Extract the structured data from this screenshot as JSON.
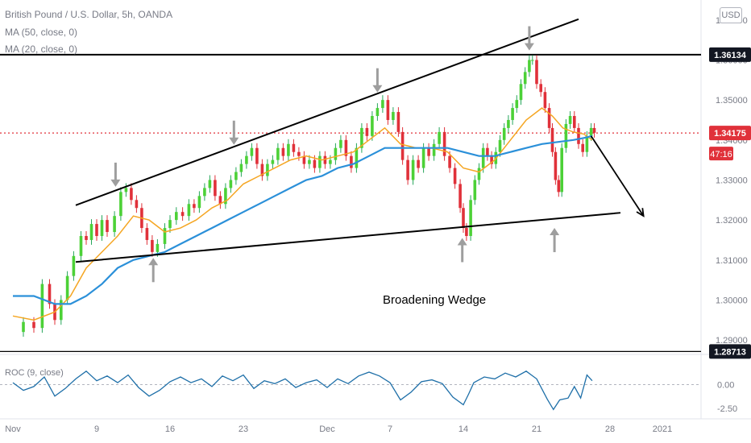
{
  "legend": {
    "symbol": "British Pound / U.S. Dollar, 5h, OANDA",
    "ma50": "MA (50, close, 0)",
    "ma20": "MA (20, close, 0)",
    "roc": "ROC (9, close)"
  },
  "currency": "USD",
  "colors": {
    "up": "#26a65b",
    "up_bright": "#4cd137",
    "down": "#e0313a",
    "ma50": "#2b90d9",
    "ma20": "#f5a623",
    "roc": "#1e6fa8",
    "price_line": "#e0313a",
    "annotation": "#000000",
    "marker_arrow": "#9e9e9e"
  },
  "chart_data": {
    "type": "line",
    "title": "British Pound / U.S. Dollar, 5h, OANDA",
    "price_axis": {
      "min": 1.287,
      "max": 1.375,
      "ticks": [
        "1.37000",
        "1.36000",
        "1.35000",
        "1.34000",
        "1.33000",
        "1.32000",
        "1.31000",
        "1.30000",
        "1.29000"
      ],
      "highlight_labels": [
        {
          "value": 1.36134,
          "text": "1.36134",
          "style": "black"
        },
        {
          "value": 1.34175,
          "text": "1.34175",
          "style": "red"
        },
        {
          "value": 1.28713,
          "text": "1.28713",
          "style": "black"
        }
      ],
      "countdown": "47:16"
    },
    "time_axis": {
      "start_day": 1,
      "end_day": 32,
      "labels": [
        {
          "day": 1,
          "text": "Nov"
        },
        {
          "day": 9,
          "text": "9"
        },
        {
          "day": 16,
          "text": "16"
        },
        {
          "day": 23,
          "text": "23"
        },
        {
          "day": 31,
          "text": "Dec"
        },
        {
          "day": 37,
          "text": "7"
        },
        {
          "day": 44,
          "text": "14"
        },
        {
          "day": 51,
          "text": "21"
        },
        {
          "day": 58,
          "text": "28"
        },
        {
          "day": 63,
          "text": "2021"
        }
      ]
    },
    "price_series": {
      "name": "GBPUSD close",
      "points": [
        [
          0.0,
          1.292
        ],
        [
          1.0,
          1.2945
        ],
        [
          2.0,
          1.293
        ],
        [
          2.8,
          1.304
        ],
        [
          3.5,
          1.299
        ],
        [
          4.0,
          1.295
        ],
        [
          4.6,
          1.3
        ],
        [
          5.2,
          1.306
        ],
        [
          5.8,
          1.311
        ],
        [
          6.5,
          1.316
        ],
        [
          7.0,
          1.315
        ],
        [
          7.5,
          1.319
        ],
        [
          8.0,
          1.316
        ],
        [
          8.5,
          1.32
        ],
        [
          9.0,
          1.317
        ],
        [
          9.7,
          1.321
        ],
        [
          10.3,
          1.327
        ],
        [
          10.8,
          1.328
        ],
        [
          11.3,
          1.325
        ],
        [
          11.8,
          1.323
        ],
        [
          12.3,
          1.318
        ],
        [
          12.8,
          1.315
        ],
        [
          13.3,
          1.312
        ],
        [
          13.8,
          1.314
        ],
        [
          14.5,
          1.318
        ],
        [
          15.0,
          1.32
        ],
        [
          15.6,
          1.322
        ],
        [
          16.2,
          1.321
        ],
        [
          16.8,
          1.324
        ],
        [
          17.3,
          1.323
        ],
        [
          17.8,
          1.326
        ],
        [
          18.3,
          1.328
        ],
        [
          18.8,
          1.33
        ],
        [
          19.3,
          1.326
        ],
        [
          19.8,
          1.324
        ],
        [
          20.3,
          1.328
        ],
        [
          20.8,
          1.33
        ],
        [
          21.3,
          1.332
        ],
        [
          21.8,
          1.334
        ],
        [
          22.3,
          1.336
        ],
        [
          22.8,
          1.338
        ],
        [
          23.3,
          1.334
        ],
        [
          23.8,
          1.331
        ],
        [
          24.3,
          1.334
        ],
        [
          24.8,
          1.335
        ],
        [
          25.3,
          1.338
        ],
        [
          25.8,
          1.336
        ],
        [
          26.3,
          1.339
        ],
        [
          26.8,
          1.337
        ],
        [
          27.3,
          1.336
        ],
        [
          27.8,
          1.334
        ],
        [
          28.3,
          1.335
        ],
        [
          28.8,
          1.333
        ],
        [
          29.3,
          1.336
        ],
        [
          29.8,
          1.334
        ],
        [
          30.3,
          1.335
        ],
        [
          30.8,
          1.338
        ],
        [
          31.3,
          1.34
        ],
        [
          31.8,
          1.336
        ],
        [
          32.3,
          1.333
        ],
        [
          32.8,
          1.338
        ],
        [
          33.3,
          1.343
        ],
        [
          33.8,
          1.341
        ],
        [
          34.3,
          1.346
        ],
        [
          34.8,
          1.348
        ],
        [
          35.3,
          1.35
        ],
        [
          35.8,
          1.345
        ],
        [
          36.3,
          1.347
        ],
        [
          36.8,
          1.342
        ],
        [
          37.2,
          1.335
        ],
        [
          37.7,
          1.33
        ],
        [
          38.2,
          1.335
        ],
        [
          38.7,
          1.333
        ],
        [
          39.2,
          1.338
        ],
        [
          39.7,
          1.336
        ],
        [
          40.2,
          1.339
        ],
        [
          40.7,
          1.342
        ],
        [
          41.2,
          1.336
        ],
        [
          41.7,
          1.333
        ],
        [
          42.2,
          1.329
        ],
        [
          42.7,
          1.323
        ],
        [
          43.0,
          1.318
        ],
        [
          43.3,
          1.316
        ],
        [
          43.7,
          1.325
        ],
        [
          44.1,
          1.33
        ],
        [
          44.5,
          1.333
        ],
        [
          44.9,
          1.338
        ],
        [
          45.3,
          1.336
        ],
        [
          45.7,
          1.334
        ],
        [
          46.1,
          1.337
        ],
        [
          46.5,
          1.34
        ],
        [
          46.9,
          1.343
        ],
        [
          47.3,
          1.345
        ],
        [
          47.7,
          1.348
        ],
        [
          48.1,
          1.35
        ],
        [
          48.5,
          1.354
        ],
        [
          48.9,
          1.357
        ],
        [
          49.3,
          1.36
        ],
        [
          49.6,
          1.36
        ],
        [
          50.0,
          1.354
        ],
        [
          50.4,
          1.352
        ],
        [
          50.8,
          1.348
        ],
        [
          51.2,
          1.343
        ],
        [
          51.5,
          1.337
        ],
        [
          51.8,
          1.33
        ],
        [
          52.1,
          1.327
        ],
        [
          52.4,
          1.338
        ],
        [
          52.8,
          1.344
        ],
        [
          53.2,
          1.346
        ],
        [
          53.6,
          1.343
        ],
        [
          54.0,
          1.339
        ],
        [
          54.4,
          1.337
        ],
        [
          54.8,
          1.341
        ],
        [
          55.2,
          1.343
        ],
        [
          55.5,
          1.3418
        ]
      ]
    },
    "ma20_series": {
      "name": "MA (20, close, 0)",
      "points": [
        [
          0.0,
          1.296
        ],
        [
          2.0,
          1.295
        ],
        [
          4.0,
          1.297
        ],
        [
          5.5,
          1.301
        ],
        [
          7.0,
          1.308
        ],
        [
          8.5,
          1.312
        ],
        [
          10.0,
          1.316
        ],
        [
          11.5,
          1.321
        ],
        [
          13.0,
          1.32
        ],
        [
          14.5,
          1.317
        ],
        [
          16.0,
          1.318
        ],
        [
          17.5,
          1.32
        ],
        [
          19.0,
          1.323
        ],
        [
          20.5,
          1.325
        ],
        [
          22.0,
          1.329
        ],
        [
          23.5,
          1.331
        ],
        [
          25.0,
          1.333
        ],
        [
          26.5,
          1.335
        ],
        [
          28.0,
          1.336
        ],
        [
          29.5,
          1.335
        ],
        [
          31.0,
          1.336
        ],
        [
          32.5,
          1.337
        ],
        [
          34.0,
          1.34
        ],
        [
          35.5,
          1.343
        ],
        [
          37.0,
          1.339
        ],
        [
          38.5,
          1.338
        ],
        [
          40.0,
          1.338
        ],
        [
          41.5,
          1.337
        ],
        [
          43.0,
          1.333
        ],
        [
          44.5,
          1.332
        ],
        [
          46.0,
          1.335
        ],
        [
          47.5,
          1.34
        ],
        [
          49.0,
          1.345
        ],
        [
          50.5,
          1.348
        ],
        [
          51.5,
          1.346
        ],
        [
          52.5,
          1.343
        ],
        [
          53.5,
          1.342
        ],
        [
          54.5,
          1.3415
        ],
        [
          55.3,
          1.34
        ]
      ]
    },
    "ma50_series": {
      "name": "MA (50, close, 0)",
      "points": [
        [
          0.0,
          1.301
        ],
        [
          2.0,
          1.301
        ],
        [
          4.0,
          1.299
        ],
        [
          5.5,
          1.299
        ],
        [
          7.0,
          1.301
        ],
        [
          8.5,
          1.304
        ],
        [
          10.0,
          1.308
        ],
        [
          11.5,
          1.31
        ],
        [
          13.0,
          1.311
        ],
        [
          14.5,
          1.312
        ],
        [
          16.0,
          1.314
        ],
        [
          17.5,
          1.316
        ],
        [
          19.0,
          1.318
        ],
        [
          20.5,
          1.32
        ],
        [
          22.0,
          1.322
        ],
        [
          23.5,
          1.324
        ],
        [
          25.0,
          1.326
        ],
        [
          26.5,
          1.328
        ],
        [
          28.0,
          1.33
        ],
        [
          29.5,
          1.331
        ],
        [
          31.0,
          1.333
        ],
        [
          32.5,
          1.334
        ],
        [
          34.0,
          1.336
        ],
        [
          35.5,
          1.338
        ],
        [
          37.0,
          1.338
        ],
        [
          38.5,
          1.338
        ],
        [
          40.0,
          1.338
        ],
        [
          41.5,
          1.338
        ],
        [
          43.0,
          1.337
        ],
        [
          44.5,
          1.336
        ],
        [
          46.0,
          1.336
        ],
        [
          47.5,
          1.337
        ],
        [
          49.0,
          1.338
        ],
        [
          50.5,
          1.339
        ],
        [
          52.0,
          1.3395
        ],
        [
          53.5,
          1.34
        ],
        [
          54.5,
          1.3405
        ],
        [
          55.3,
          1.341
        ]
      ]
    },
    "roc_panel": {
      "name": "ROC (9, close)",
      "ylim": [
        -2.9,
        2.9
      ],
      "ticks": [
        "0.00",
        "-2.50"
      ],
      "points": [
        [
          0.0,
          0.2
        ],
        [
          1.0,
          -0.6
        ],
        [
          2.0,
          -0.2
        ],
        [
          3.0,
          0.8
        ],
        [
          4.0,
          -1.2
        ],
        [
          5.0,
          -0.4
        ],
        [
          6.0,
          0.6
        ],
        [
          7.0,
          1.4
        ],
        [
          8.0,
          0.4
        ],
        [
          9.0,
          0.9
        ],
        [
          10.0,
          0.2
        ],
        [
          11.0,
          1.0
        ],
        [
          12.0,
          -0.3
        ],
        [
          13.0,
          -1.2
        ],
        [
          14.0,
          -0.6
        ],
        [
          15.0,
          0.3
        ],
        [
          16.0,
          0.8
        ],
        [
          17.0,
          0.2
        ],
        [
          18.0,
          0.6
        ],
        [
          19.0,
          -0.2
        ],
        [
          20.0,
          0.9
        ],
        [
          21.0,
          0.4
        ],
        [
          22.0,
          1.0
        ],
        [
          23.0,
          -0.4
        ],
        [
          24.0,
          0.4
        ],
        [
          25.0,
          0.1
        ],
        [
          26.0,
          0.6
        ],
        [
          27.0,
          -0.3
        ],
        [
          28.0,
          0.2
        ],
        [
          29.0,
          0.5
        ],
        [
          30.0,
          -0.3
        ],
        [
          31.0,
          0.6
        ],
        [
          32.0,
          0.1
        ],
        [
          33.0,
          0.9
        ],
        [
          34.0,
          1.3
        ],
        [
          35.0,
          0.9
        ],
        [
          36.0,
          0.2
        ],
        [
          37.0,
          -1.6
        ],
        [
          38.0,
          -0.8
        ],
        [
          39.0,
          0.3
        ],
        [
          40.0,
          0.5
        ],
        [
          41.0,
          0.1
        ],
        [
          42.0,
          -1.3
        ],
        [
          43.0,
          -2.1
        ],
        [
          43.5,
          -1.0
        ],
        [
          44.0,
          0.2
        ],
        [
          45.0,
          0.8
        ],
        [
          46.0,
          0.6
        ],
        [
          47.0,
          1.2
        ],
        [
          48.0,
          0.8
        ],
        [
          49.0,
          1.4
        ],
        [
          49.5,
          1.0
        ],
        [
          50.0,
          0.6
        ],
        [
          51.0,
          -1.5
        ],
        [
          51.6,
          -2.6
        ],
        [
          52.2,
          -1.6
        ],
        [
          53.0,
          -1.4
        ],
        [
          53.6,
          -0.2
        ],
        [
          54.2,
          -1.4
        ],
        [
          54.8,
          1.0
        ],
        [
          55.3,
          0.4
        ]
      ]
    },
    "annotations": {
      "label": "Broadening Wedge",
      "upper_trendline": [
        [
          6.0,
          1.3237
        ],
        [
          54.0,
          1.3702
        ]
      ],
      "lower_trendline": [
        [
          6.0,
          1.3095
        ],
        [
          58.0,
          1.3218
        ]
      ],
      "resistance_line": 1.36134,
      "support_line": 1.28713,
      "projection_arrow": [
        [
          55.2,
          1.341
        ],
        [
          60.2,
          1.321
        ]
      ],
      "marker_arrows": [
        {
          "day": 9.8,
          "price": 1.3283,
          "direction": "down"
        },
        {
          "day": 21.1,
          "price": 1.3388,
          "direction": "down"
        },
        {
          "day": 34.8,
          "price": 1.3519,
          "direction": "down"
        },
        {
          "day": 49.3,
          "price": 1.3624,
          "direction": "down"
        },
        {
          "day": 13.4,
          "price": 1.3105,
          "direction": "up"
        },
        {
          "day": 42.9,
          "price": 1.3155,
          "direction": "up"
        },
        {
          "day": 51.7,
          "price": 1.318,
          "direction": "up"
        }
      ]
    }
  }
}
